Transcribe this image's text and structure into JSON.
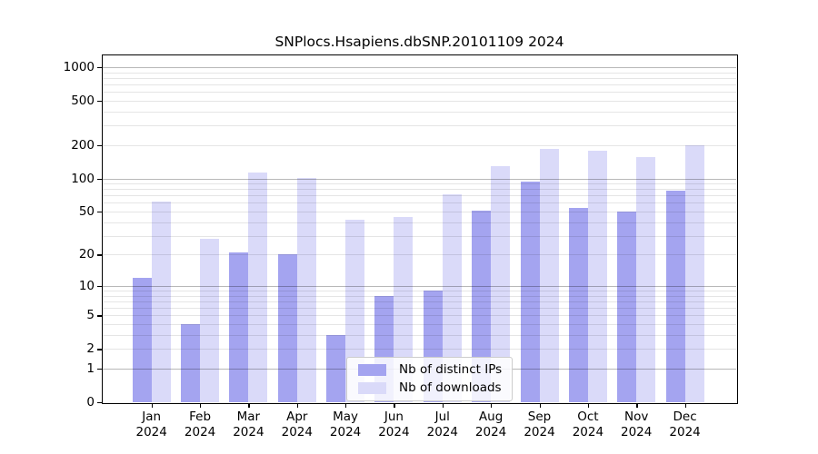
{
  "chart_data": {
    "type": "bar",
    "title": "SNPlocs.Hsapiens.dbSNP.20101109 2024",
    "categories": [
      "Jan",
      "Feb",
      "Mar",
      "Apr",
      "May",
      "Jun",
      "Jul",
      "Aug",
      "Sep",
      "Oct",
      "Nov",
      "Dec"
    ],
    "year_label": "2024",
    "series": [
      {
        "name": "Nb of distinct IPs",
        "color": "#a4a4f0",
        "values": [
          12,
          4,
          21,
          20,
          3,
          8,
          9,
          51,
          93,
          54,
          50,
          78
        ]
      },
      {
        "name": "Nb of downloads",
        "color": "#dadaf9",
        "values": [
          62,
          28,
          112,
          100,
          42,
          45,
          72,
          128,
          186,
          178,
          157,
          198
        ]
      }
    ],
    "yscale": "log1p",
    "yticks": [
      0,
      1,
      2,
      5,
      10,
      20,
      50,
      100,
      200,
      500,
      1000
    ],
    "ylim": [
      0,
      1275
    ],
    "xlabel": "",
    "ylabel": "",
    "grid": "horizontal-major-and-minor",
    "legend_position": "inside-bottom-center"
  }
}
